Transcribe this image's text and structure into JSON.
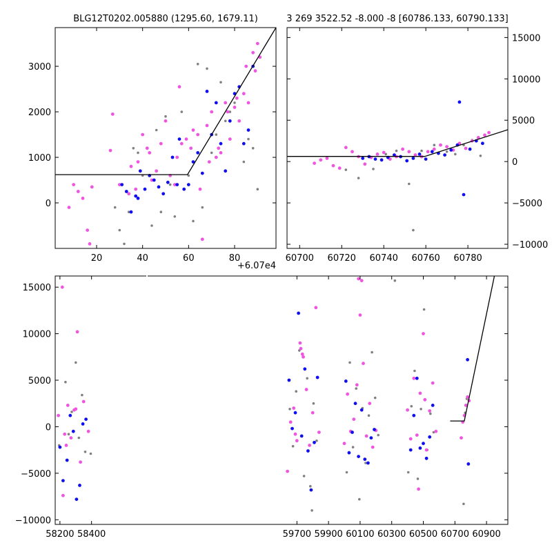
{
  "chart_data": [
    {
      "id": "p1",
      "type": "scatter",
      "title": "BLG12T0202.005880 (1295.60, 1679.11)",
      "offset_label": "+6.07e4",
      "xlim": [
        2,
        98
      ],
      "ylim": [
        -1000,
        3850
      ],
      "xticks": [
        20,
        40,
        60,
        80
      ],
      "yticks": [
        0,
        1000,
        2000,
        3000
      ],
      "ytick_side": "left",
      "model_line": {
        "x": [
          2,
          59.5,
          98
        ],
        "y": [
          620,
          620,
          3850
        ]
      },
      "series": [
        {
          "name": "pink",
          "color": "#f055e0",
          "x": [
            8,
            10,
            12,
            14,
            16,
            17,
            18,
            26,
            27,
            30,
            35,
            37,
            40,
            42,
            44,
            46,
            48,
            52,
            54,
            56,
            57,
            59,
            62,
            64,
            66,
            68,
            70,
            72,
            74,
            76,
            78,
            80,
            82,
            84,
            86,
            88,
            90,
            34,
            38,
            43,
            50,
            55,
            61,
            65,
            69,
            73,
            77,
            81,
            85,
            89,
            91
          ],
          "y": [
            -100,
            400,
            250,
            100,
            -600,
            -900,
            350,
            1150,
            1950,
            400,
            800,
            300,
            1500,
            1200,
            500,
            700,
            1300,
            600,
            400,
            2550,
            1300,
            1400,
            1600,
            1500,
            -800,
            1700,
            2000,
            1000,
            1100,
            2200,
            1400,
            2100,
            1800,
            2400,
            2200,
            3300,
            3500,
            200,
            900,
            1100,
            1800,
            1000,
            1200,
            300,
            900,
            1200,
            2000,
            2300,
            3000,
            2900,
            3200
          ]
        },
        {
          "name": "blue",
          "color": "#1010ee",
          "x": [
            31,
            33,
            35,
            37,
            38,
            39,
            41,
            43,
            45,
            47,
            49,
            51,
            53,
            55,
            56,
            58,
            60,
            62,
            64,
            66,
            68,
            70,
            72,
            74,
            76,
            78,
            80,
            82,
            84,
            86,
            88
          ],
          "y": [
            400,
            250,
            -200,
            150,
            100,
            700,
            300,
            600,
            500,
            350,
            200,
            450,
            1000,
            400,
            1400,
            300,
            400,
            900,
            1100,
            650,
            2450,
            1500,
            2200,
            1300,
            700,
            1800,
            2400,
            2550,
            1300,
            1600,
            3000
          ]
        },
        {
          "name": "gray",
          "color": "#808080",
          "x": [
            28,
            30,
            32,
            34,
            36,
            38,
            40,
            44,
            46,
            48,
            50,
            52,
            54,
            57,
            60,
            62,
            64,
            66,
            68,
            70,
            72,
            74,
            76,
            78,
            80,
            82,
            84,
            86,
            88,
            90
          ],
          "y": [
            -100,
            -600,
            -900,
            -200,
            1200,
            1100,
            600,
            -500,
            1600,
            -200,
            1900,
            400,
            -300,
            2000,
            600,
            -400,
            3050,
            -100,
            2950,
            1100,
            1500,
            2650,
            1800,
            2000,
            2200,
            1800,
            900,
            1400,
            1200,
            300
          ]
        }
      ]
    },
    {
      "id": "p2",
      "type": "scatter",
      "title": "3 269 3522.52 -8.000 -8 [60786.133, 60790.133]",
      "xlim": [
        60694,
        60799
      ],
      "ylim": [
        -10500,
        16200
      ],
      "xticks": [
        60700,
        60720,
        60740,
        60760,
        60780
      ],
      "yticks": [
        -10000,
        -5000,
        0,
        5000,
        10000,
        15000
      ],
      "ytick_side": "right",
      "model_line": {
        "x": [
          60694,
          60759.5,
          60799
        ],
        "y": [
          620,
          620,
          3850
        ]
      },
      "series": [
        {
          "name": "pink",
          "color": "#f055e0",
          "x": [
            60707,
            60710,
            60713,
            60716,
            60719,
            60722,
            60725,
            60728,
            60731,
            60734,
            60737,
            60740,
            60743,
            60746,
            60749,
            60752,
            60755,
            60758,
            60761,
            60764,
            60767,
            60770,
            60773,
            60776,
            60779,
            60782,
            60785,
            60788,
            60790
          ],
          "y": [
            -200,
            200,
            400,
            -500,
            -800,
            1700,
            1200,
            600,
            -300,
            500,
            900,
            1100,
            300,
            600,
            1500,
            1200,
            800,
            600,
            1200,
            1500,
            2000,
            1800,
            1400,
            2200,
            1600,
            2500,
            2900,
            3200,
            3500
          ]
        },
        {
          "name": "blue",
          "color": "#1010ee",
          "x": [
            60730,
            60733,
            60736,
            60739,
            60742,
            60745,
            60748,
            60751,
            60754,
            60757,
            60760,
            60763,
            60766,
            60769,
            60772,
            60775,
            60776,
            60778,
            60781,
            60784,
            60787
          ],
          "y": [
            400,
            600,
            300,
            200,
            500,
            800,
            600,
            100,
            400,
            900,
            300,
            1200,
            1000,
            800,
            1400,
            2000,
            7200,
            -4000,
            1500,
            2500,
            2200
          ]
        },
        {
          "name": "gray",
          "color": "#808080",
          "x": [
            60722,
            60728,
            60735,
            60741,
            60746,
            60752,
            60754,
            60758,
            60764,
            60770,
            60774,
            60778,
            60782,
            60786
          ],
          "y": [
            -1000,
            -2000,
            -900,
            900,
            1300,
            -2700,
            -8300,
            1300,
            2000,
            1200,
            900,
            2000,
            2600,
            700
          ]
        }
      ]
    },
    {
      "id": "p3",
      "type": "scatter",
      "title": "",
      "xlim": [
        58170,
        61035
      ],
      "ylim": [
        -10500,
        16200
      ],
      "xticks": [
        58200,
        58400,
        59700,
        59900,
        60100,
        60300,
        60500,
        60700,
        60900
      ],
      "xtick_labels": [
        "58200",
        "58400",
        "59700",
        "59900",
        "60100",
        "60300",
        "60500",
        "60700",
        "60900"
      ],
      "yticks": [
        -10000,
        -5000,
        0,
        5000,
        10000,
        15000
      ],
      "ytick_side": "left",
      "model_line": {
        "x": [
          60670,
          60759.5,
          60950
        ],
        "y": [
          620,
          620,
          16200
        ]
      },
      "series": [
        {
          "name": "pink",
          "color": "#f055e0",
          "x": [
            58190,
            58215,
            58230,
            58250,
            58270,
            58290,
            58310,
            58330,
            58350,
            58380,
            59640,
            59660,
            59680,
            59700,
            59720,
            59740,
            59760,
            59780,
            59800,
            59820,
            59840,
            60000,
            60020,
            60040,
            60060,
            60080,
            60100,
            60120,
            60140,
            60160,
            60180,
            60200,
            60400,
            60420,
            60440,
            60460,
            60480,
            60500,
            60520,
            60540,
            60560,
            60580,
            60740,
            60750,
            60760,
            60770,
            60780,
            60790,
            58220,
            58240,
            58300,
            59725,
            59735,
            59690,
            60090,
            60110,
            60470,
            60510
          ],
          "y": [
            1200,
            15000,
            -800,
            2300,
            -1200,
            1800,
            10200,
            -3800,
            2700,
            -500,
            -4800,
            500,
            2000,
            -1500,
            9000,
            7500,
            4000,
            -2000,
            1500,
            12800,
            -600,
            -1800,
            3500,
            -500,
            800,
            4500,
            12000,
            6800,
            -1000,
            2500,
            -2200,
            -400,
            1800,
            -1300,
            5200,
            -900,
            3600,
            10000,
            -2500,
            1700,
            4700,
            -500,
            -1200,
            500,
            1200,
            2300,
            3200,
            2800,
            -7400,
            -2000,
            1900,
            8400,
            7800,
            -800,
            15900,
            15700,
            -6700,
            2900
          ]
        },
        {
          "name": "blue",
          "color": "#1010ee",
          "x": [
            58200,
            58220,
            58245,
            58265,
            58285,
            58305,
            58325,
            58345,
            58365,
            59650,
            59670,
            59690,
            59710,
            59730,
            59750,
            59770,
            59790,
            59810,
            59830,
            60010,
            60030,
            60050,
            60070,
            60090,
            60110,
            60130,
            60150,
            60170,
            60190,
            60420,
            60440,
            60460,
            60480,
            60500,
            60520,
            60540,
            60560,
            60780,
            60785
          ],
          "y": [
            -2200,
            -5800,
            -3600,
            1200,
            -500,
            -7800,
            -6300,
            300,
            800,
            5000,
            -200,
            1500,
            12200,
            -1000,
            6200,
            -2600,
            -6800,
            -1700,
            5300,
            4900,
            -2800,
            -600,
            2500,
            -3200,
            1800,
            -3500,
            -3900,
            -1200,
            -300,
            -2500,
            1200,
            5200,
            -2300,
            -1800,
            -3400,
            -1100,
            2300,
            7200,
            -4000
          ]
        },
        {
          "name": "gray",
          "color": "#808080",
          "x": [
            58195,
            58235,
            58255,
            58275,
            58300,
            58320,
            58340,
            58360,
            58395,
            59655,
            59675,
            59695,
            59715,
            59745,
            59765,
            59785,
            59805,
            59825,
            60015,
            60035,
            60055,
            60075,
            60095,
            60115,
            60135,
            60155,
            60175,
            60195,
            60215,
            60405,
            60425,
            60445,
            60465,
            60485,
            60505,
            60525,
            60545,
            60565,
            60755,
            60765,
            60775,
            60320,
            59795
          ],
          "y": [
            -2000,
            4800,
            -800,
            1600,
            6900,
            -1200,
            3400,
            -2700,
            -2900,
            1900,
            -2100,
            3800,
            8200,
            -5300,
            5200,
            -6400,
            2500,
            -1500,
            -4900,
            6900,
            -2200,
            4100,
            -7800,
            2000,
            -3900,
            1200,
            8000,
            3100,
            -900,
            -4900,
            2200,
            6000,
            -5600,
            1900,
            12600,
            -2500,
            1400,
            -600,
            -8300,
            1500,
            3000,
            15700,
            -9000
          ]
        }
      ]
    }
  ]
}
